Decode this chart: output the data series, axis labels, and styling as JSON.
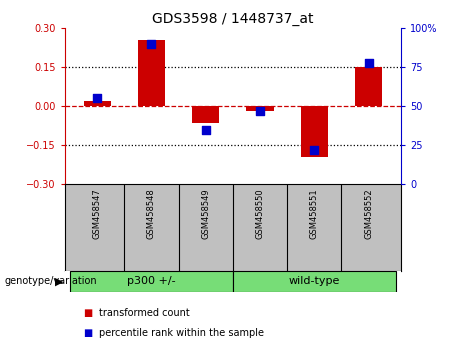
{
  "title": "GDS3598 / 1448737_at",
  "samples": [
    "GSM458547",
    "GSM458548",
    "GSM458549",
    "GSM458550",
    "GSM458551",
    "GSM458552"
  ],
  "red_bars": [
    0.02,
    0.255,
    -0.065,
    -0.02,
    -0.195,
    0.15
  ],
  "blue_dots_pct": [
    55,
    90,
    35,
    47,
    22,
    78
  ],
  "ylim_left": [
    -0.3,
    0.3
  ],
  "ylim_right": [
    0,
    100
  ],
  "yticks_left": [
    -0.3,
    -0.15,
    0,
    0.15,
    0.3
  ],
  "yticks_right": [
    0,
    25,
    50,
    75,
    100
  ],
  "hlines": [
    -0.15,
    0.15
  ],
  "bar_color": "#CC0000",
  "dot_color": "#0000CC",
  "bar_width": 0.5,
  "dot_size": 35,
  "legend_red": "transformed count",
  "legend_blue": "percentile rank within the sample",
  "genotype_label": "genotype/variation",
  "group_box_color": "#77DD77",
  "tick_box_color": "#C0C0C0",
  "left_axis_color": "#CC0000",
  "right_axis_color": "#0000CC",
  "group_defs": [
    {
      "start": 0,
      "end": 2,
      "label": "p300 +/-"
    },
    {
      "start": 3,
      "end": 5,
      "label": "wild-type"
    }
  ]
}
